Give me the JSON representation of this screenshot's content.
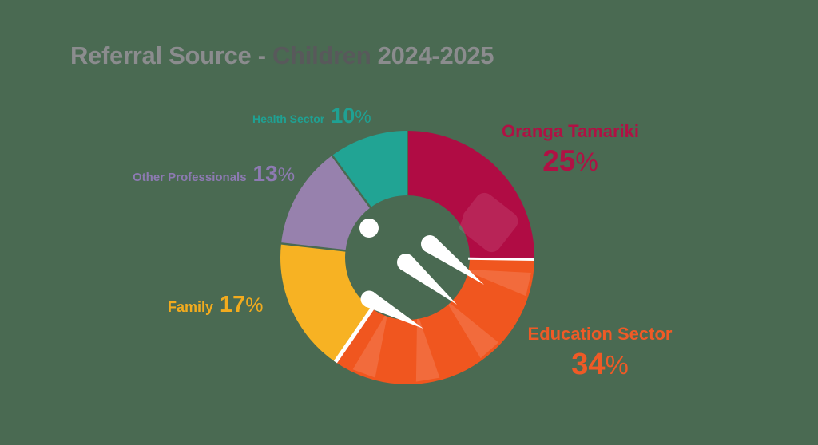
{
  "title": {
    "prefix": "Referral Source - ",
    "highlight": "Children",
    "suffix": " 2024-2025"
  },
  "unit": "%",
  "chart_data": {
    "type": "pie",
    "subtype": "donut",
    "title": "Referral Source - Children 2024-2025",
    "segments": [
      {
        "label": "Oranga Tamariki",
        "value": 25,
        "color": "#b00c44"
      },
      {
        "label": "Education Sector",
        "value": 34,
        "color": "#f0561f"
      },
      {
        "label": "Family",
        "value": 17,
        "color": "#f7b223"
      },
      {
        "label": "Other Professionals",
        "value": 13,
        "color": "#9781ad"
      },
      {
        "label": "Health Sector",
        "value": 10,
        "color": "#21a494"
      }
    ],
    "start_angle_deg": 0,
    "direction": "clockwise",
    "inner_radius_ratio": 0.49,
    "legend_position": "around-donut",
    "background_color": "#4a6a52",
    "center_logo": "white-dot-and-three-rays"
  }
}
